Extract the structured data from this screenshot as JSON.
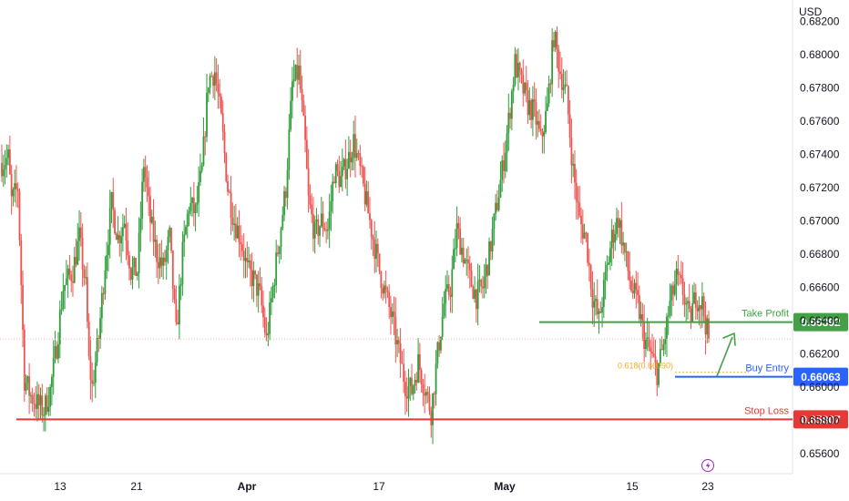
{
  "currency": "USD",
  "colors": {
    "up": "#26a69a",
    "up_body": "#2e9e3a",
    "down": "#ef5350",
    "take_profit": "#43a047",
    "buy_entry": "#2962ff",
    "stop_loss": "#e53935",
    "fib": "#f9a825",
    "current": "#f5b5b5",
    "grid": "#f0f3fa"
  },
  "icons": {
    "bottom": "lightning-icon"
  },
  "chart_data": {
    "type": "candlestick",
    "ylim": [
      0.6548,
      0.6833
    ],
    "y_ticks": [
      {
        "v": 0.656,
        "label": "0.65600"
      },
      {
        "v": 0.658,
        "label": "0.65800"
      },
      {
        "v": 0.66,
        "label": "0.66000"
      },
      {
        "v": 0.662,
        "label": "0.66200"
      },
      {
        "v": 0.664,
        "label": "0.66400"
      },
      {
        "v": 0.666,
        "label": "0.66600"
      },
      {
        "v": 0.668,
        "label": "0.66800"
      },
      {
        "v": 0.67,
        "label": "0.67000"
      },
      {
        "v": 0.672,
        "label": "0.67200"
      },
      {
        "v": 0.674,
        "label": "0.67400"
      },
      {
        "v": 0.676,
        "label": "0.67600"
      },
      {
        "v": 0.678,
        "label": "0.67800"
      },
      {
        "v": 0.68,
        "label": "0.68000"
      },
      {
        "v": 0.682,
        "label": "0.68200"
      }
    ],
    "x_ticks": [
      {
        "label": "13",
        "bold": false
      },
      {
        "label": "21",
        "bold": false
      },
      {
        "label": "Apr",
        "bold": true
      },
      {
        "label": "17",
        "bold": false
      },
      {
        "label": "May",
        "bold": true
      },
      {
        "label": "15",
        "bold": false
      },
      {
        "label": "23",
        "bold": false
      }
    ],
    "price_path": [
      [
        0,
        0.6735
      ],
      [
        2,
        0.6738
      ],
      [
        3,
        0.6712
      ],
      [
        5,
        0.672
      ],
      [
        7,
        0.6605
      ],
      [
        9,
        0.6595
      ],
      [
        11,
        0.659
      ],
      [
        13,
        0.6586
      ],
      [
        15,
        0.6598
      ],
      [
        17,
        0.6625
      ],
      [
        19,
        0.666
      ],
      [
        22,
        0.667
      ],
      [
        24,
        0.669
      ],
      [
        26,
        0.666
      ],
      [
        27,
        0.6615
      ],
      [
        28,
        0.66
      ],
      [
        30,
        0.663
      ],
      [
        32,
        0.6675
      ],
      [
        34,
        0.671
      ],
      [
        36,
        0.669
      ],
      [
        38,
        0.67
      ],
      [
        40,
        0.667
      ],
      [
        42,
        0.667
      ],
      [
        44,
        0.6735
      ],
      [
        46,
        0.67
      ],
      [
        48,
        0.668
      ],
      [
        50,
        0.6672
      ],
      [
        52,
        0.669
      ],
      [
        54,
        0.6632
      ],
      [
        56,
        0.668
      ],
      [
        58,
        0.671
      ],
      [
        60,
        0.6705
      ],
      [
        62,
        0.673
      ],
      [
        64,
        0.6785
      ],
      [
        66,
        0.679
      ],
      [
        68,
        0.676
      ],
      [
        70,
        0.672
      ],
      [
        72,
        0.67
      ],
      [
        74,
        0.669
      ],
      [
        76,
        0.667
      ],
      [
        78,
        0.6665
      ],
      [
        80,
        0.6655
      ],
      [
        82,
        0.6628
      ],
      [
        84,
        0.666
      ],
      [
        86,
        0.669
      ],
      [
        88,
        0.672
      ],
      [
        90,
        0.6782
      ],
      [
        92,
        0.679
      ],
      [
        94,
        0.6745
      ],
      [
        95,
        0.6712
      ],
      [
        97,
        0.6692
      ],
      [
        99,
        0.67
      ],
      [
        101,
        0.6695
      ],
      [
        103,
        0.673
      ],
      [
        105,
        0.6725
      ],
      [
        107,
        0.6735
      ],
      [
        109,
        0.6748
      ],
      [
        111,
        0.673
      ],
      [
        113,
        0.671
      ],
      [
        115,
        0.669
      ],
      [
        117,
        0.667
      ],
      [
        119,
        0.6655
      ],
      [
        121,
        0.664
      ],
      [
        123,
        0.662
      ],
      [
        125,
        0.6602
      ],
      [
        127,
        0.6598
      ],
      [
        129,
        0.6615
      ],
      [
        131,
        0.66
      ],
      [
        133,
        0.6585
      ],
      [
        135,
        0.662
      ],
      [
        137,
        0.665
      ],
      [
        139,
        0.666
      ],
      [
        141,
        0.6695
      ],
      [
        143,
        0.668
      ],
      [
        145,
        0.6665
      ],
      [
        147,
        0.6655
      ],
      [
        149,
        0.666
      ],
      [
        151,
        0.668
      ],
      [
        153,
        0.6705
      ],
      [
        155,
        0.673
      ],
      [
        157,
        0.676
      ],
      [
        159,
        0.6795
      ],
      [
        161,
        0.6782
      ],
      [
        163,
        0.677
      ],
      [
        165,
        0.6765
      ],
      [
        167,
        0.6748
      ],
      [
        169,
        0.6768
      ],
      [
        171,
        0.6812
      ],
      [
        173,
        0.679
      ],
      [
        175,
        0.6775
      ],
      [
        177,
        0.673
      ],
      [
        179,
        0.67
      ],
      [
        181,
        0.669
      ],
      [
        183,
        0.6655
      ],
      [
        185,
        0.664
      ],
      [
        187,
        0.6665
      ],
      [
        189,
        0.669
      ],
      [
        191,
        0.6702
      ],
      [
        193,
        0.668
      ],
      [
        195,
        0.666
      ],
      [
        197,
        0.665
      ],
      [
        199,
        0.663
      ],
      [
        201,
        0.662
      ],
      [
        203,
        0.6609
      ],
      [
        205,
        0.6625
      ],
      [
        207,
        0.665
      ],
      [
        209,
        0.6665
      ],
      [
        211,
        0.6658
      ],
      [
        213,
        0.664
      ],
      [
        215,
        0.6655
      ],
      [
        217,
        0.665
      ],
      [
        219,
        0.6628
      ]
    ],
    "last_price": 0.6629,
    "levels": [
      {
        "name": "Take Profit",
        "value": 0.66392,
        "badge": "0.66392",
        "color_key": "take_profit",
        "label_side": "right"
      },
      {
        "name": "Buy Entry",
        "value": 0.66063,
        "badge": "0.66063",
        "color_key": "buy_entry",
        "label_side": "right"
      },
      {
        "name": "Stop Loss",
        "value": 0.65807,
        "badge": "0.65807",
        "color_key": "stop_loss",
        "label_side": "right"
      }
    ],
    "fib": {
      "label": "0.618(0.66090)",
      "value": 0.6609
    }
  }
}
